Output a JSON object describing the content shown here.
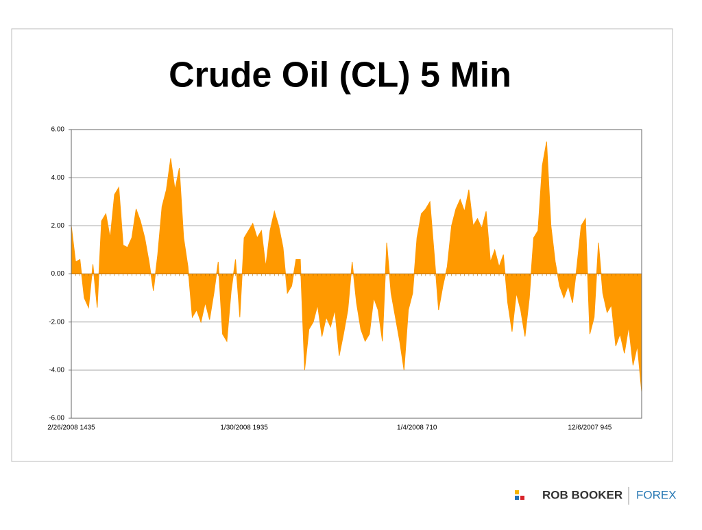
{
  "chart_data": {
    "type": "area",
    "title": "Crude Oil (CL) 5 Min",
    "categories": [
      "2/26/2008 1435",
      null,
      null,
      null,
      null,
      null,
      null,
      null,
      null,
      null,
      null,
      null,
      null,
      null,
      null,
      null,
      null,
      null,
      null,
      null,
      null,
      null,
      null,
      null,
      null,
      null,
      null,
      null,
      null,
      null,
      null,
      null,
      null,
      null,
      null,
      null,
      null,
      null,
      null,
      null,
      "1/30/2008 1935",
      null,
      null,
      null,
      null,
      null,
      null,
      null,
      null,
      null,
      null,
      null,
      null,
      null,
      null,
      null,
      null,
      null,
      null,
      null,
      null,
      null,
      null,
      null,
      null,
      null,
      null,
      null,
      null,
      null,
      null,
      null,
      null,
      null,
      null,
      null,
      null,
      null,
      null,
      null,
      "1/4/2008 710",
      null,
      null,
      null,
      null,
      null,
      null,
      null,
      null,
      null,
      null,
      null,
      null,
      null,
      null,
      null,
      null,
      null,
      null,
      null,
      null,
      null,
      null,
      null,
      null,
      null,
      null,
      null,
      null,
      null,
      null,
      null,
      null,
      null,
      null,
      null,
      null,
      null,
      null,
      null,
      "12/6/2007 945",
      null,
      null,
      null,
      null,
      null,
      null,
      null,
      null,
      null,
      null,
      null,
      null
    ],
    "values": [
      2.0,
      0.5,
      0.6,
      -1.0,
      -1.4,
      0.4,
      -1.4,
      2.2,
      2.5,
      1.5,
      3.3,
      3.6,
      1.2,
      1.1,
      1.5,
      2.7,
      2.2,
      1.5,
      0.5,
      -0.7,
      0.8,
      2.8,
      3.5,
      4.8,
      3.5,
      4.4,
      1.5,
      0.3,
      -1.8,
      -1.5,
      -2.0,
      -1.2,
      -1.9,
      -0.8,
      0.5,
      -2.5,
      -2.8,
      -0.7,
      0.6,
      -1.8,
      1.5,
      1.8,
      2.1,
      1.5,
      1.8,
      0.3,
      1.8,
      2.6,
      2.0,
      1.1,
      -0.8,
      -0.5,
      0.6,
      0.6,
      -4.0,
      -2.3,
      -2.0,
      -1.3,
      -2.6,
      -1.8,
      -2.2,
      -1.5,
      -3.4,
      -2.5,
      -1.5,
      0.5,
      -1.2,
      -2.3,
      -2.8,
      -2.5,
      -1.0,
      -1.5,
      -2.8,
      1.3,
      -0.8,
      -1.8,
      -2.8,
      -4.0,
      -1.5,
      -0.8,
      1.5,
      2.5,
      2.7,
      3.0,
      0.8,
      -1.5,
      -0.5,
      0.3,
      2.0,
      2.7,
      3.1,
      2.6,
      3.5,
      2.0,
      2.3,
      1.9,
      2.6,
      0.5,
      1.0,
      0.3,
      0.8,
      -1.2,
      -2.4,
      -0.8,
      -1.5,
      -2.6,
      -1.0,
      1.5,
      1.8,
      4.5,
      5.5,
      2.0,
      0.5,
      -0.5,
      -1.0,
      -0.5,
      -1.2,
      0.3,
      2.0,
      2.3,
      -2.5,
      -1.8,
      1.3,
      -0.8,
      -1.6,
      -1.3,
      -3.0,
      -2.5,
      -3.3,
      -2.2,
      -3.8,
      -3.0,
      -4.9
    ],
    "color": "#ff9900",
    "ylim": [
      -6,
      6
    ],
    "yticks": [
      {
        "value": -6,
        "label": "-6.00"
      },
      {
        "value": -4,
        "label": "-4.00"
      },
      {
        "value": -2,
        "label": "-2.00"
      },
      {
        "value": 0,
        "label": "0.00"
      },
      {
        "value": 2,
        "label": "2.00"
      },
      {
        "value": 4,
        "label": "4.00"
      },
      {
        "value": 6,
        "label": "6.00"
      }
    ],
    "grid": true
  },
  "logo": {
    "name": "ROB BOOKER",
    "tag": "FOREX"
  }
}
